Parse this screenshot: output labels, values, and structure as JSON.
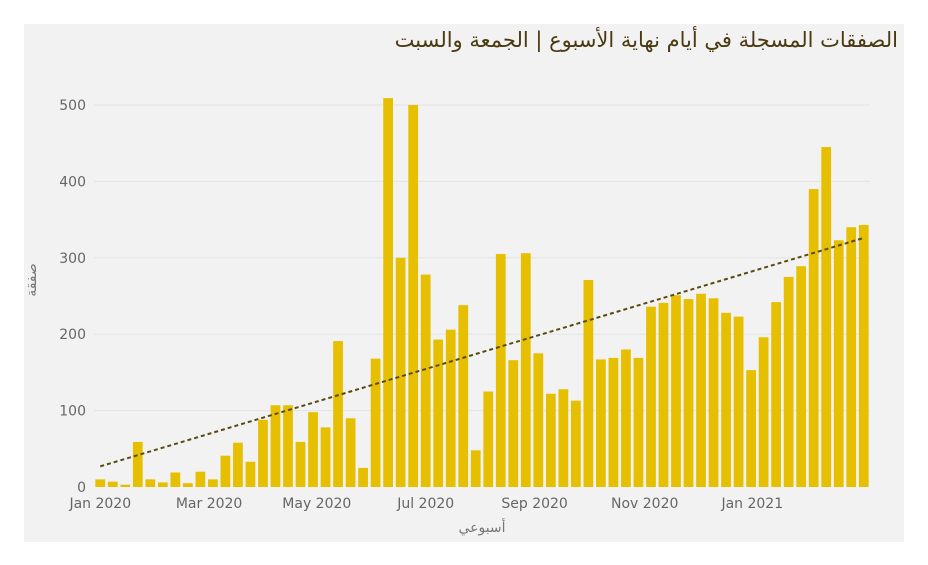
{
  "chart_data": {
    "type": "bar",
    "title": "الصفقات المسجلة في أيام نهاية الأسبوع | الجمعة والسبت",
    "xlabel": "أسبوعي",
    "ylabel": "صفقة",
    "ylim": [
      0,
      520
    ],
    "y_ticks": [
      0,
      100,
      200,
      300,
      400,
      500
    ],
    "x_ticks": [
      "Jan 2020",
      "Mar 2020",
      "May 2020",
      "Jul 2020",
      "Sep 2020",
      "Nov 2020",
      "Jan 2021"
    ],
    "x_tick_week_index": [
      0,
      8.7,
      17.3,
      26,
      34.7,
      43.5,
      52.1
    ],
    "grid": true,
    "bar_color": "#e6c000",
    "trend_color": "#5a4a10",
    "trendline": {
      "start": 27,
      "end": 326
    },
    "values": [
      10,
      7,
      3,
      59,
      10,
      6,
      19,
      5,
      20,
      10,
      41,
      58,
      33,
      88,
      107,
      107,
      59,
      98,
      78,
      191,
      90,
      25,
      168,
      509,
      300,
      500,
      278,
      193,
      206,
      238,
      48,
      125,
      305,
      166,
      306,
      175,
      122,
      128,
      113,
      271,
      167,
      169,
      180,
      169,
      236,
      241,
      251,
      246,
      253,
      247,
      228,
      223,
      153,
      196,
      242,
      275,
      289,
      390,
      445,
      323,
      340,
      343
    ]
  }
}
